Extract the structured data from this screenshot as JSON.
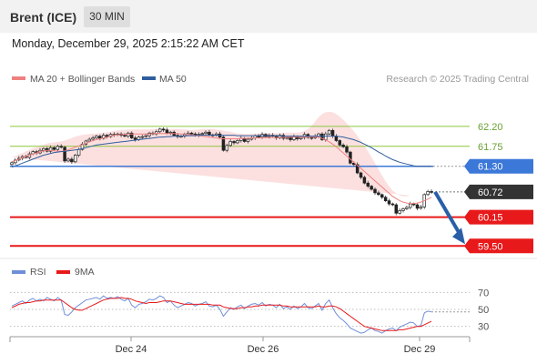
{
  "header": {
    "title": "Brent (ICE)",
    "timeframe": "30 MIN",
    "timestamp": "Monday, December 29, 2025 2:15:22 AM CET"
  },
  "colors": {
    "bollinger": "#f08080",
    "ma50": "#2f5e9e",
    "resistance": "#8dc63f",
    "support": "#e8191a",
    "pivot": "#3c78d8",
    "arrow": "#2a5fa8",
    "rsi": "#6f8fd8",
    "rsi_ma": "#e8191a"
  },
  "chart_data": [
    {
      "type": "candlestick",
      "legend": [
        {
          "name": "MA 20 + Bollinger Bands",
          "color": "#f08080"
        },
        {
          "name": "MA 50",
          "color": "#2f5e9e"
        }
      ],
      "credit": "Research © 2025 Trading Central",
      "ylim": [
        59.3,
        63.0
      ],
      "levels": [
        {
          "value": 62.2,
          "label": "62.20",
          "kind": "resistance"
        },
        {
          "value": 61.75,
          "label": "61.75",
          "kind": "resistance"
        },
        {
          "value": 61.3,
          "label": "61.30",
          "kind": "pivot"
        },
        {
          "value": 60.72,
          "label": "60.72",
          "kind": "last"
        },
        {
          "value": 60.15,
          "label": "60.15",
          "kind": "support"
        },
        {
          "value": 59.5,
          "label": "59.50",
          "kind": "support"
        }
      ],
      "x_ticks": [
        "Dec 24",
        "Dec 26",
        "Dec 29"
      ],
      "close": [
        61.38,
        61.44,
        61.48,
        61.52,
        61.5,
        61.58,
        61.63,
        61.6,
        61.66,
        61.7,
        61.64,
        61.72,
        61.68,
        61.75,
        61.73,
        61.42,
        61.46,
        61.4,
        61.55,
        61.68,
        61.8,
        61.87,
        61.91,
        61.94,
        61.98,
        61.93,
        62.0,
        61.97,
        62.02,
        62.01,
        62.03,
        62.0,
        61.98,
        62.05,
        61.94,
        61.9,
        61.96,
        61.97,
        61.99,
        62.05,
        62.03,
        62.08,
        62.14,
        62.12,
        62.05,
        62.07,
        62.0,
        61.97,
        61.98,
        62.02,
        62.05,
        62.03,
        62.0,
        62.02,
        62.04,
        62.07,
        62.01,
        62.0,
        62.03,
        61.96,
        61.66,
        61.77,
        61.86,
        61.83,
        61.88,
        61.93,
        61.86,
        61.91,
        61.94,
        61.99,
        61.96,
        62.02,
        61.97,
        62.0,
        61.98,
        61.94,
        62.0,
        61.93,
        61.95,
        61.9,
        61.97,
        61.92,
        61.95,
        62.02,
        61.95,
        61.94,
        61.98,
        62.03,
        61.9,
        62.03,
        62.11,
        61.98,
        61.88,
        61.78,
        61.74,
        61.62,
        61.37,
        61.34,
        61.15,
        61.05,
        60.92,
        60.85,
        60.78,
        60.7,
        60.66,
        60.6,
        60.52,
        60.45,
        60.43,
        60.24,
        60.3,
        60.34,
        60.37,
        60.45,
        60.43,
        60.35,
        60.38,
        60.66,
        60.73,
        60.72
      ],
      "ma20": [
        61.4,
        61.43,
        61.46,
        61.49,
        61.52,
        61.55,
        61.58,
        61.6,
        61.63,
        61.65,
        61.66,
        61.66,
        61.65,
        61.64,
        61.64,
        61.65,
        61.67,
        61.7,
        61.73,
        61.76,
        61.79,
        61.82,
        61.85,
        61.88,
        61.9,
        61.92,
        61.94,
        61.96,
        61.98,
        62.0,
        62.01,
        62.02,
        62.02,
        62.03,
        62.03,
        62.03,
        62.03,
        62.03,
        62.03,
        62.03,
        62.04,
        62.04,
        62.04,
        62.04,
        62.04,
        62.04,
        62.04,
        62.04,
        62.03,
        62.03,
        62.02,
        62.01,
        62.0,
        61.99,
        61.98,
        61.97,
        61.96,
        61.95,
        61.94,
        61.93,
        61.92,
        61.92,
        61.92,
        61.92,
        61.92,
        61.93,
        61.93,
        61.93,
        61.94,
        61.94,
        61.94,
        61.95,
        61.95,
        61.95,
        61.95,
        61.95,
        61.95,
        61.95,
        61.96,
        61.96,
        61.96,
        61.96,
        61.96,
        61.96,
        61.96,
        61.96,
        61.96,
        61.96,
        61.93,
        61.9,
        61.85,
        61.8,
        61.74,
        61.67,
        61.6,
        61.53,
        61.46,
        61.39,
        61.32,
        61.25,
        61.18,
        61.11,
        61.04,
        60.97,
        60.9,
        60.83,
        60.76,
        60.69,
        60.62,
        60.57,
        60.52,
        60.49,
        60.47,
        60.46,
        60.46,
        60.47,
        60.49,
        60.52,
        60.56,
        60.6
      ],
      "bb_width": [
        0.1,
        0.1,
        0.11,
        0.11,
        0.12,
        0.12,
        0.13,
        0.13,
        0.13,
        0.14,
        0.15,
        0.17,
        0.19,
        0.21,
        0.22,
        0.23,
        0.24,
        0.24,
        0.24,
        0.23,
        0.22,
        0.2,
        0.18,
        0.16,
        0.14,
        0.13,
        0.12,
        0.11,
        0.1,
        0.1,
        0.1,
        0.1,
        0.1,
        0.1,
        0.1,
        0.1,
        0.1,
        0.1,
        0.1,
        0.1,
        0.1,
        0.1,
        0.1,
        0.1,
        0.1,
        0.1,
        0.1,
        0.1,
        0.1,
        0.1,
        0.1,
        0.11,
        0.12,
        0.14,
        0.16,
        0.17,
        0.18,
        0.19,
        0.19,
        0.19,
        0.18,
        0.17,
        0.16,
        0.14,
        0.12,
        0.11,
        0.1,
        0.1,
        0.1,
        0.1,
        0.1,
        0.1,
        0.1,
        0.1,
        0.1,
        0.1,
        0.1,
        0.1,
        0.1,
        0.1,
        0.1,
        0.1,
        0.11,
        0.14,
        0.18,
        0.25,
        0.35,
        0.45,
        0.55,
        0.62,
        0.68,
        0.72,
        0.74,
        0.75,
        0.75,
        0.74,
        0.72,
        0.7,
        0.67,
        0.63,
        0.58,
        0.53,
        0.47,
        0.4,
        0.33,
        0.26,
        0.2,
        0.16,
        0.13,
        0.12,
        0.12,
        0.13,
        0.15,
        0.18
      ],
      "ma50": [
        61.28,
        61.31,
        61.34,
        61.37,
        61.4,
        61.43,
        61.46,
        61.49,
        61.52,
        61.55,
        61.57,
        61.59,
        61.61,
        61.62,
        61.63,
        61.64,
        61.65,
        61.66,
        61.67,
        61.68,
        61.7,
        61.72,
        61.74,
        61.76,
        61.78,
        61.79,
        61.8,
        61.81,
        61.82,
        61.83,
        61.84,
        61.85,
        61.86,
        61.87,
        61.88,
        61.89,
        61.9,
        61.91,
        61.92,
        61.93,
        61.94,
        61.95,
        61.96,
        61.96,
        61.97,
        61.97,
        61.98,
        61.98,
        61.98,
        61.99,
        61.99,
        61.99,
        61.99,
        62.0,
        62.0,
        62.0,
        62.0,
        62.0,
        62.0,
        62.0,
        62.0,
        62.0,
        62.0,
        62.0,
        61.99,
        61.99,
        61.99,
        61.99,
        61.99,
        61.99,
        61.99,
        61.99,
        61.99,
        61.99,
        61.99,
        61.99,
        61.99,
        61.98,
        61.98,
        61.98,
        61.98,
        61.98,
        61.98,
        61.98,
        61.98,
        61.98,
        61.98,
        61.98,
        61.98,
        61.98,
        61.98,
        61.98,
        61.98,
        61.97,
        61.96,
        61.94,
        61.92,
        61.9,
        61.87,
        61.84,
        61.8,
        61.76,
        61.72,
        61.67,
        61.62,
        61.58,
        61.53,
        61.49,
        61.45,
        61.42,
        61.39,
        61.37,
        61.35,
        61.33,
        61.31,
        61.3,
        61.3,
        61.3,
        61.3,
        61.3
      ]
    },
    {
      "type": "line",
      "legend": [
        {
          "name": "RSI",
          "color": "#6f8fd8"
        },
        {
          "name": "9MA",
          "color": "#e8191a"
        }
      ],
      "ylim": [
        20,
        80
      ],
      "y_ticks": [
        70,
        50,
        30
      ],
      "rsi": [
        54,
        56,
        58,
        60,
        57,
        61,
        63,
        60,
        62,
        60,
        64,
        62,
        60,
        64,
        61,
        44,
        43,
        47,
        52,
        55,
        58,
        61,
        62,
        63,
        64,
        62,
        66,
        63,
        64,
        63,
        65,
        62,
        60,
        63,
        55,
        52,
        56,
        57,
        59,
        62,
        61,
        63,
        66,
        64,
        58,
        60,
        55,
        52,
        54,
        56,
        58,
        57,
        54,
        56,
        57,
        59,
        54,
        53,
        55,
        50,
        42,
        47,
        52,
        50,
        53,
        55,
        51,
        54,
        56,
        57,
        55,
        58,
        54,
        56,
        55,
        52,
        56,
        51,
        53,
        50,
        54,
        51,
        53,
        57,
        52,
        51,
        54,
        57,
        49,
        57,
        61,
        52,
        45,
        40,
        37,
        33,
        28,
        26,
        24,
        22,
        23,
        26,
        28,
        25,
        24,
        22,
        25,
        27,
        28,
        25,
        29,
        31,
        33,
        35,
        34,
        30,
        31,
        46,
        48,
        47
      ],
      "rsi_ma": [
        52,
        54,
        56,
        57,
        58,
        58,
        59,
        60,
        60,
        61,
        61,
        61,
        61,
        61,
        61,
        58,
        55,
        52,
        50,
        49,
        49,
        51,
        53,
        55,
        57,
        59,
        61,
        62,
        63,
        63,
        63,
        64,
        63,
        63,
        62,
        60,
        59,
        58,
        57,
        58,
        58,
        58,
        59,
        60,
        60,
        60,
        59,
        58,
        57,
        56,
        56,
        56,
        56,
        56,
        56,
        56,
        56,
        55,
        55,
        55,
        53,
        52,
        51,
        51,
        51,
        52,
        52,
        53,
        53,
        54,
        54,
        55,
        55,
        55,
        55,
        55,
        55,
        54,
        54,
        53,
        53,
        53,
        53,
        53,
        53,
        53,
        53,
        54,
        53,
        53,
        54,
        54,
        53,
        51,
        48,
        45,
        42,
        39,
        36,
        33,
        30,
        29,
        28,
        27,
        26,
        25,
        25,
        25,
        25,
        25,
        26,
        26,
        27,
        28,
        29,
        30,
        30,
        32,
        34,
        36
      ]
    }
  ]
}
